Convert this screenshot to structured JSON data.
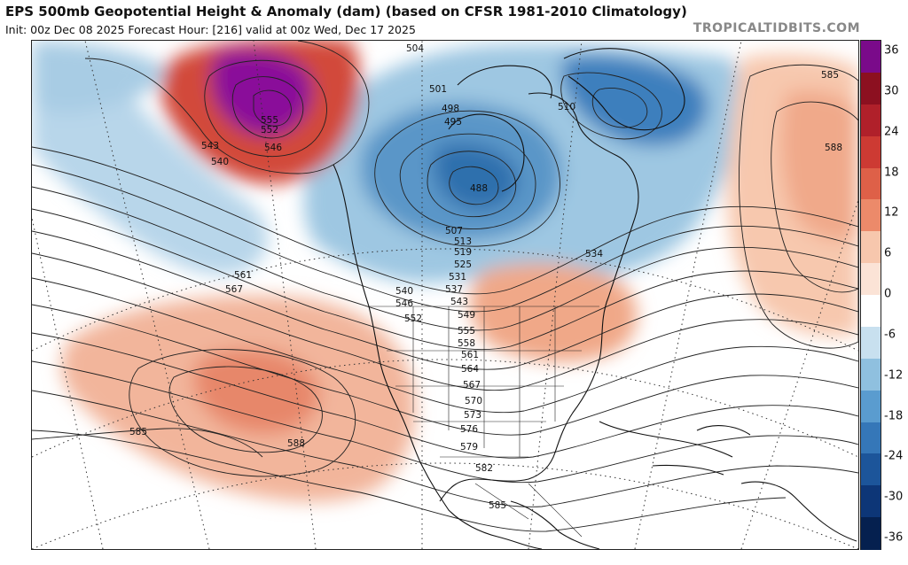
{
  "header": {
    "title": "EPS 500mb Geopotential Height & Anomaly (dam) (based on CFSR 1981-2010 Climatology)",
    "subtitle": "Init: 00z Dec 08 2025   Forecast Hour: [216]   valid at 00z Wed, Dec 17 2025",
    "site": "TROPICALTIDBITS.COM"
  },
  "colorbar": {
    "labels": [
      "36",
      "30",
      "24",
      "18",
      "12",
      "6",
      "0",
      "-6",
      "-12",
      "-18",
      "-24",
      "-30",
      "-36"
    ],
    "colors": [
      "#7a0a8a",
      "#8c1020",
      "#b0202a",
      "#cd3a33",
      "#de6048",
      "#ec8a6a",
      "#f7c7ad",
      "#fbe3d6",
      "#ffffff",
      "#c8e0ef",
      "#8fc0df",
      "#5a9ccf",
      "#3577b8",
      "#1c559a",
      "#0d3677",
      "#05204f"
    ]
  },
  "map": {
    "contour_labels": [
      "504",
      "501",
      "498",
      "495",
      "510",
      "543",
      "540",
      "546",
      "552",
      "555",
      "561",
      "567",
      "488",
      "507",
      "513",
      "519",
      "525",
      "531",
      "534",
      "537",
      "540",
      "546",
      "543",
      "549",
      "552",
      "555",
      "558",
      "561",
      "564",
      "567",
      "570",
      "573",
      "576",
      "579",
      "582",
      "585",
      "585",
      "588",
      "588",
      "585"
    ],
    "colors": {
      "land_outline": "#111111",
      "contour": "#222222",
      "strong_pos": "#8a0f9a",
      "strong_neg": "#2f73b5"
    }
  }
}
